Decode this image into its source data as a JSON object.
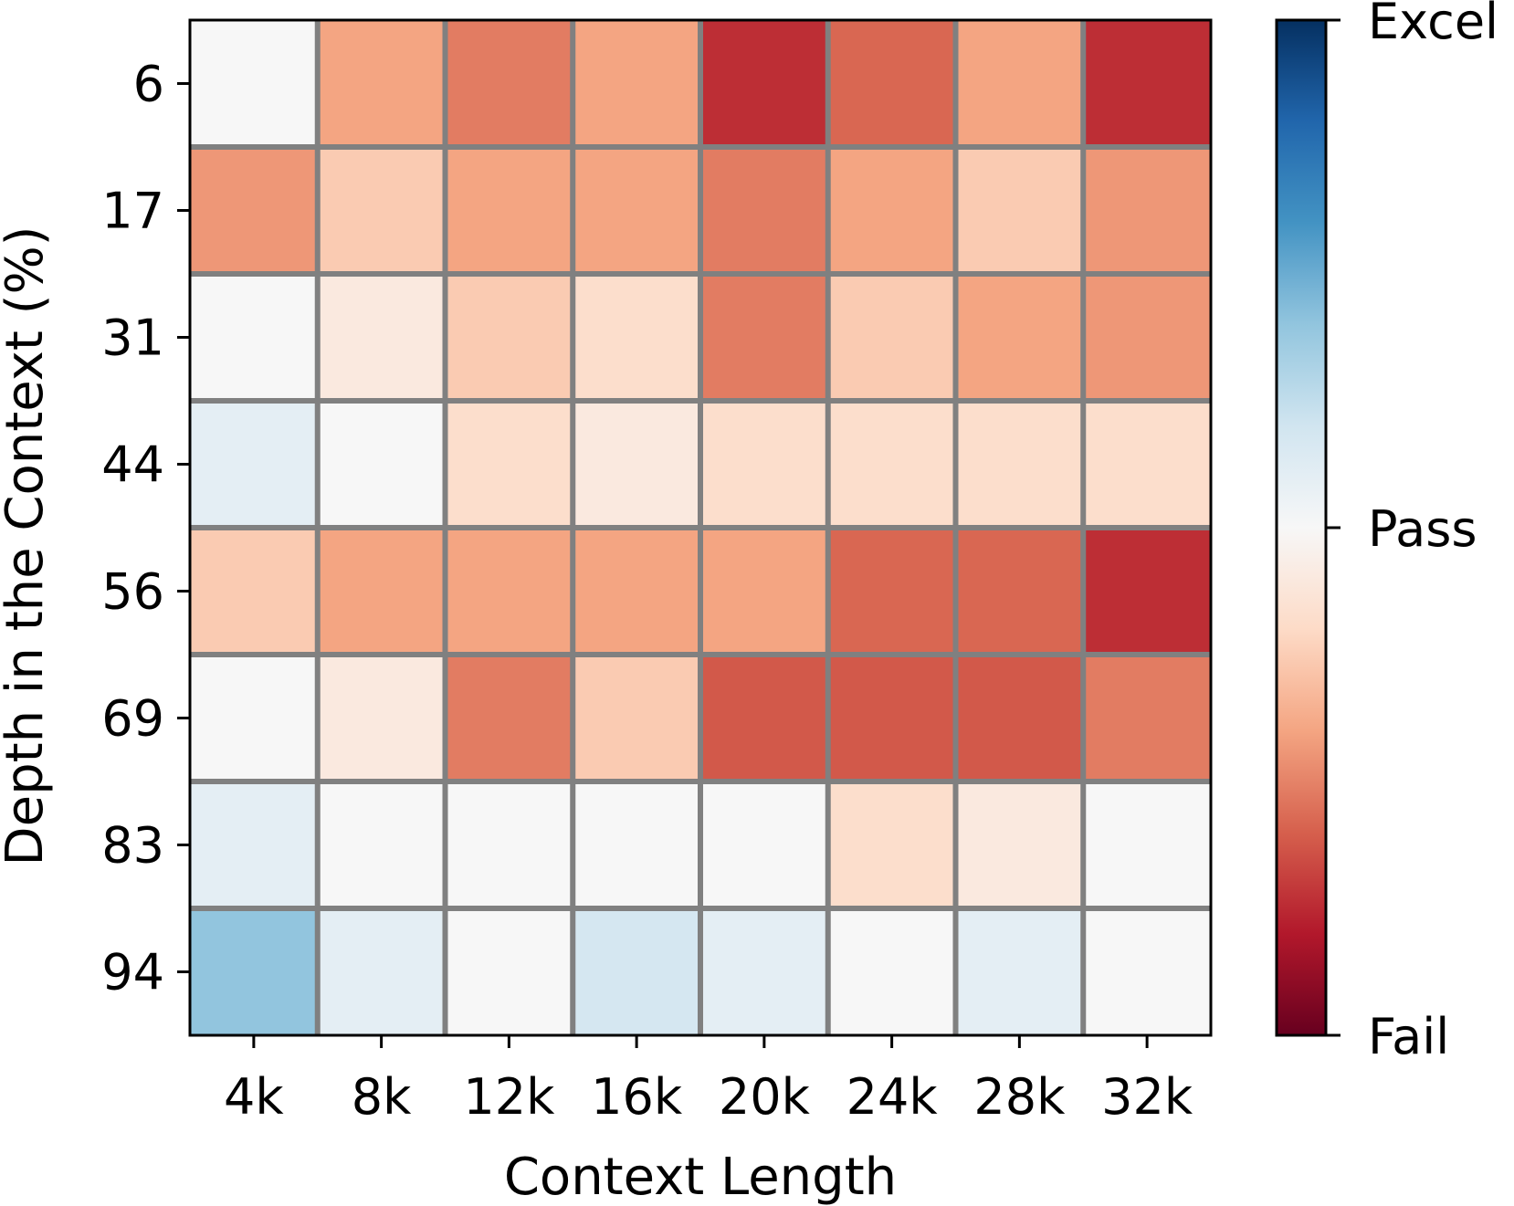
{
  "chart_data": {
    "type": "heatmap",
    "xlabel": "Context Length",
    "ylabel": "Depth in the Context (%)",
    "x_categories": [
      "4k",
      "8k",
      "12k",
      "16k",
      "20k",
      "24k",
      "28k",
      "32k"
    ],
    "y_categories": [
      "6",
      "17",
      "31",
      "44",
      "56",
      "69",
      "83",
      "94"
    ],
    "values": [
      [
        0.5,
        0.3,
        0.24,
        0.3,
        0.13,
        0.21,
        0.3,
        0.13
      ],
      [
        0.28,
        0.37,
        0.3,
        0.3,
        0.24,
        0.3,
        0.37,
        0.28
      ],
      [
        0.5,
        0.45,
        0.37,
        0.41,
        0.24,
        0.37,
        0.3,
        0.28
      ],
      [
        0.55,
        0.5,
        0.41,
        0.45,
        0.41,
        0.41,
        0.41,
        0.41
      ],
      [
        0.37,
        0.3,
        0.3,
        0.3,
        0.3,
        0.21,
        0.21,
        0.13
      ],
      [
        0.5,
        0.45,
        0.24,
        0.37,
        0.19,
        0.19,
        0.19,
        0.24
      ],
      [
        0.55,
        0.5,
        0.5,
        0.5,
        0.5,
        0.41,
        0.45,
        0.5
      ],
      [
        0.7,
        0.55,
        0.5,
        0.59,
        0.55,
        0.5,
        0.55,
        0.5
      ]
    ],
    "value_range": [
      0,
      1
    ],
    "colormap": "RdBu",
    "grid_color": "#808080",
    "colorbar": {
      "ticks": [
        {
          "value": 1.0,
          "label": "Excel"
        },
        {
          "value": 0.5,
          "label": "Pass"
        },
        {
          "value": 0.0,
          "label": "Fail"
        }
      ]
    }
  }
}
